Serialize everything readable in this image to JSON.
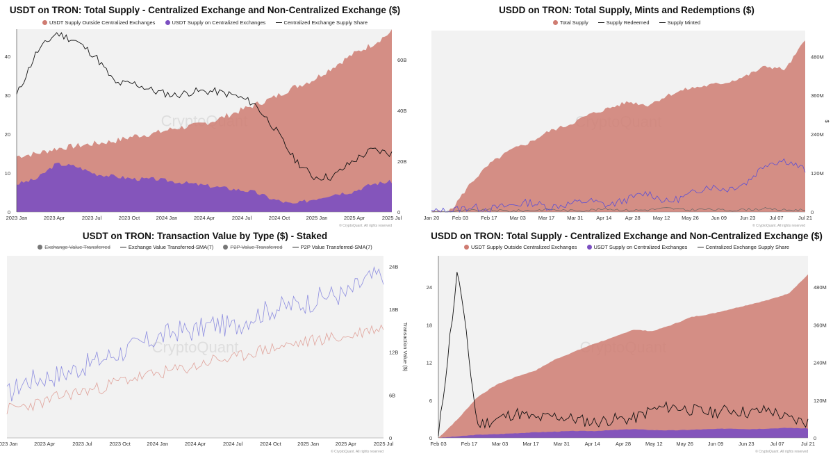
{
  "watermark": "CryptoQuant",
  "credit": "© CryptoQuant. All rights reserved",
  "colors": {
    "outside": "#cf7c72",
    "onexch": "#7b4fc1",
    "share": "#111111",
    "blue": "#8e8ee0",
    "red": "#e0a29a",
    "plot_bg": "#f2f2f2"
  },
  "chart_data": [
    {
      "type": "area",
      "title": "USDT on TRON: Total Supply - Centralized Exchange and Non-Centralized Exchange ($)",
      "legend": [
        "USDT Supply Outside Centralized Exchanges",
        "USDT Supply on Centralized Exchanges",
        "Centralized Exchange Supply Share"
      ],
      "x_ticks": [
        "2023 Jan",
        "2023 Apr",
        "2023 Jul",
        "2023 Oct",
        "2024 Jan",
        "2024 Apr",
        "2024 Jul",
        "2024 Oct",
        "2025 Jan",
        "2025 Apr",
        "2025 Jul"
      ],
      "y_left_ticks": [
        "0",
        "10",
        "20",
        "30",
        "40"
      ],
      "y_right_ticks": [
        "0",
        "20B",
        "40B",
        "60B"
      ],
      "ylim_left": [
        0,
        47
      ],
      "ylim_right": [
        0,
        72
      ],
      "series": [
        {
          "name": "USDT Supply Outside Centralized Exchanges (total, B)",
          "values": [
            22,
            23,
            25,
            26,
            27,
            28,
            30,
            31,
            33,
            34,
            36,
            39,
            42,
            45,
            49,
            52,
            57,
            62,
            66,
            71
          ]
        },
        {
          "name": "USDT Supply on Centralized Exchanges (B)",
          "values": [
            11,
            13,
            19,
            18,
            15,
            14,
            13,
            13,
            12,
            11,
            10,
            9,
            8,
            5,
            3,
            5,
            7,
            8,
            11,
            12
          ]
        },
        {
          "name": "Centralized Exchange Supply Share (%)",
          "values": [
            30,
            41,
            46,
            44,
            40,
            33,
            33,
            31,
            30,
            31,
            31,
            30,
            28,
            22,
            14,
            9,
            9,
            13,
            16,
            15
          ]
        }
      ]
    },
    {
      "type": "area",
      "title": "USDD on TRON: Total Supply, Mints and Redemptions ($)",
      "legend": [
        "Total Supply",
        "Supply Redeemed",
        "Supply Minted"
      ],
      "x_ticks": [
        "Jan 20",
        "Feb 03",
        "Feb 17",
        "Mar 03",
        "Mar 17",
        "Mar 31",
        "Apr 14",
        "Apr 28",
        "May 12",
        "May 26",
        "Jun 09",
        "Jun 23",
        "Jul 07",
        "Jul 21"
      ],
      "y_right_ticks": [
        "0",
        "120M",
        "240M",
        "360M",
        "480M"
      ],
      "y_right_label": "$",
      "ylim_right": [
        0,
        560
      ],
      "series": [
        {
          "name": "Total Supply (M)",
          "values": [
            0,
            5,
            90,
            150,
            190,
            215,
            250,
            270,
            300,
            320,
            340,
            330,
            360,
            380,
            390,
            400,
            420,
            450,
            440,
            530
          ]
        },
        {
          "name": "Supply Redeemed (M)",
          "values": [
            0,
            2,
            4,
            6,
            3,
            5,
            8,
            4,
            6,
            10,
            5,
            7,
            12,
            6,
            9,
            5,
            8,
            10,
            6,
            7
          ]
        },
        {
          "name": "Supply Minted (M)",
          "values": [
            0,
            5,
            15,
            10,
            20,
            30,
            15,
            25,
            35,
            20,
            40,
            60,
            30,
            50,
            80,
            70,
            90,
            150,
            160,
            130
          ]
        }
      ]
    },
    {
      "type": "line",
      "title": "USDT on TRON: Transaction Value by Type ($) - Staked",
      "legend": [
        "Exchange Value Transferred",
        "Exchange Value Transferred-SMA(7)",
        "P2P Value Transferred",
        "P2P Value Transferred-SMA(7)"
      ],
      "legend_disabled": [
        true,
        false,
        true,
        false
      ],
      "x_ticks": [
        "2023 Jan",
        "2023 Apr",
        "2023 Jul",
        "2023 Oct",
        "2024 Jan",
        "2024 Apr",
        "2024 Jul",
        "2024 Oct",
        "2025 Jan",
        "2025 Apr",
        "2025 Jul"
      ],
      "y_right_ticks": [
        "0",
        "6B",
        "12B",
        "18B",
        "24B"
      ],
      "y_right_label": "Transaction Value ($)",
      "ylim_right": [
        0,
        25.5
      ],
      "series": [
        {
          "name": "Exchange Value Transferred-SMA(7) (B)",
          "values": [
            6,
            8,
            8.5,
            9,
            10,
            11,
            12,
            13,
            14,
            15,
            15,
            16,
            15.5,
            17,
            18,
            18.5,
            19,
            20,
            20,
            22,
            23
          ]
        },
        {
          "name": "P2P Value Transferred-SMA(7) (B)",
          "values": [
            4,
            4.5,
            5,
            6,
            6.5,
            7,
            8,
            8.5,
            9,
            9.5,
            10,
            11,
            11,
            12,
            12.5,
            13,
            13.5,
            14,
            14,
            15,
            15.5
          ]
        }
      ]
    },
    {
      "type": "area",
      "title": "USDD on TRON: Total Supply - Centralized Exchange and Non-Centralized Exchange ($)",
      "legend": [
        "USDT Supply Outside Centralized Exchanges",
        "USDT Supply on Centralized Exchanges",
        "Centralized Exchange Supply Share"
      ],
      "x_ticks": [
        "Feb 03",
        "Feb 17",
        "Mar 03",
        "Mar 17",
        "Mar 31",
        "Apr 14",
        "Apr 28",
        "May 12",
        "May 26",
        "Jun 09",
        "Jun 23",
        "Jul 07",
        "Jul 21"
      ],
      "y_left_ticks": [
        "0",
        "6",
        "12",
        "18",
        "24"
      ],
      "y_right_ticks": [
        "0",
        "120M",
        "240M",
        "360M",
        "480M"
      ],
      "ylim_left": [
        0,
        29
      ],
      "ylim_right": [
        0,
        580
      ],
      "series": [
        {
          "name": "USDT Supply Outside Centralized Exchanges (total, M)",
          "values": [
            0,
            60,
            130,
            170,
            195,
            215,
            250,
            275,
            300,
            320,
            345,
            340,
            360,
            385,
            395,
            410,
            425,
            440,
            460,
            520
          ]
        },
        {
          "name": "USDT Supply on Centralized Exchanges (M)",
          "values": [
            0,
            5,
            10,
            12,
            15,
            18,
            20,
            22,
            22,
            25,
            28,
            25,
            24,
            26,
            28,
            30,
            28,
            30,
            32,
            30
          ]
        },
        {
          "name": "Centralized Exchange Supply Share (%)",
          "values": [
            0,
            27,
            2,
            3,
            4,
            3,
            3.5,
            3,
            2.5,
            3,
            3,
            4.5,
            5,
            4.5,
            4,
            4.5,
            4,
            4.5,
            3,
            2.5
          ]
        }
      ]
    }
  ]
}
